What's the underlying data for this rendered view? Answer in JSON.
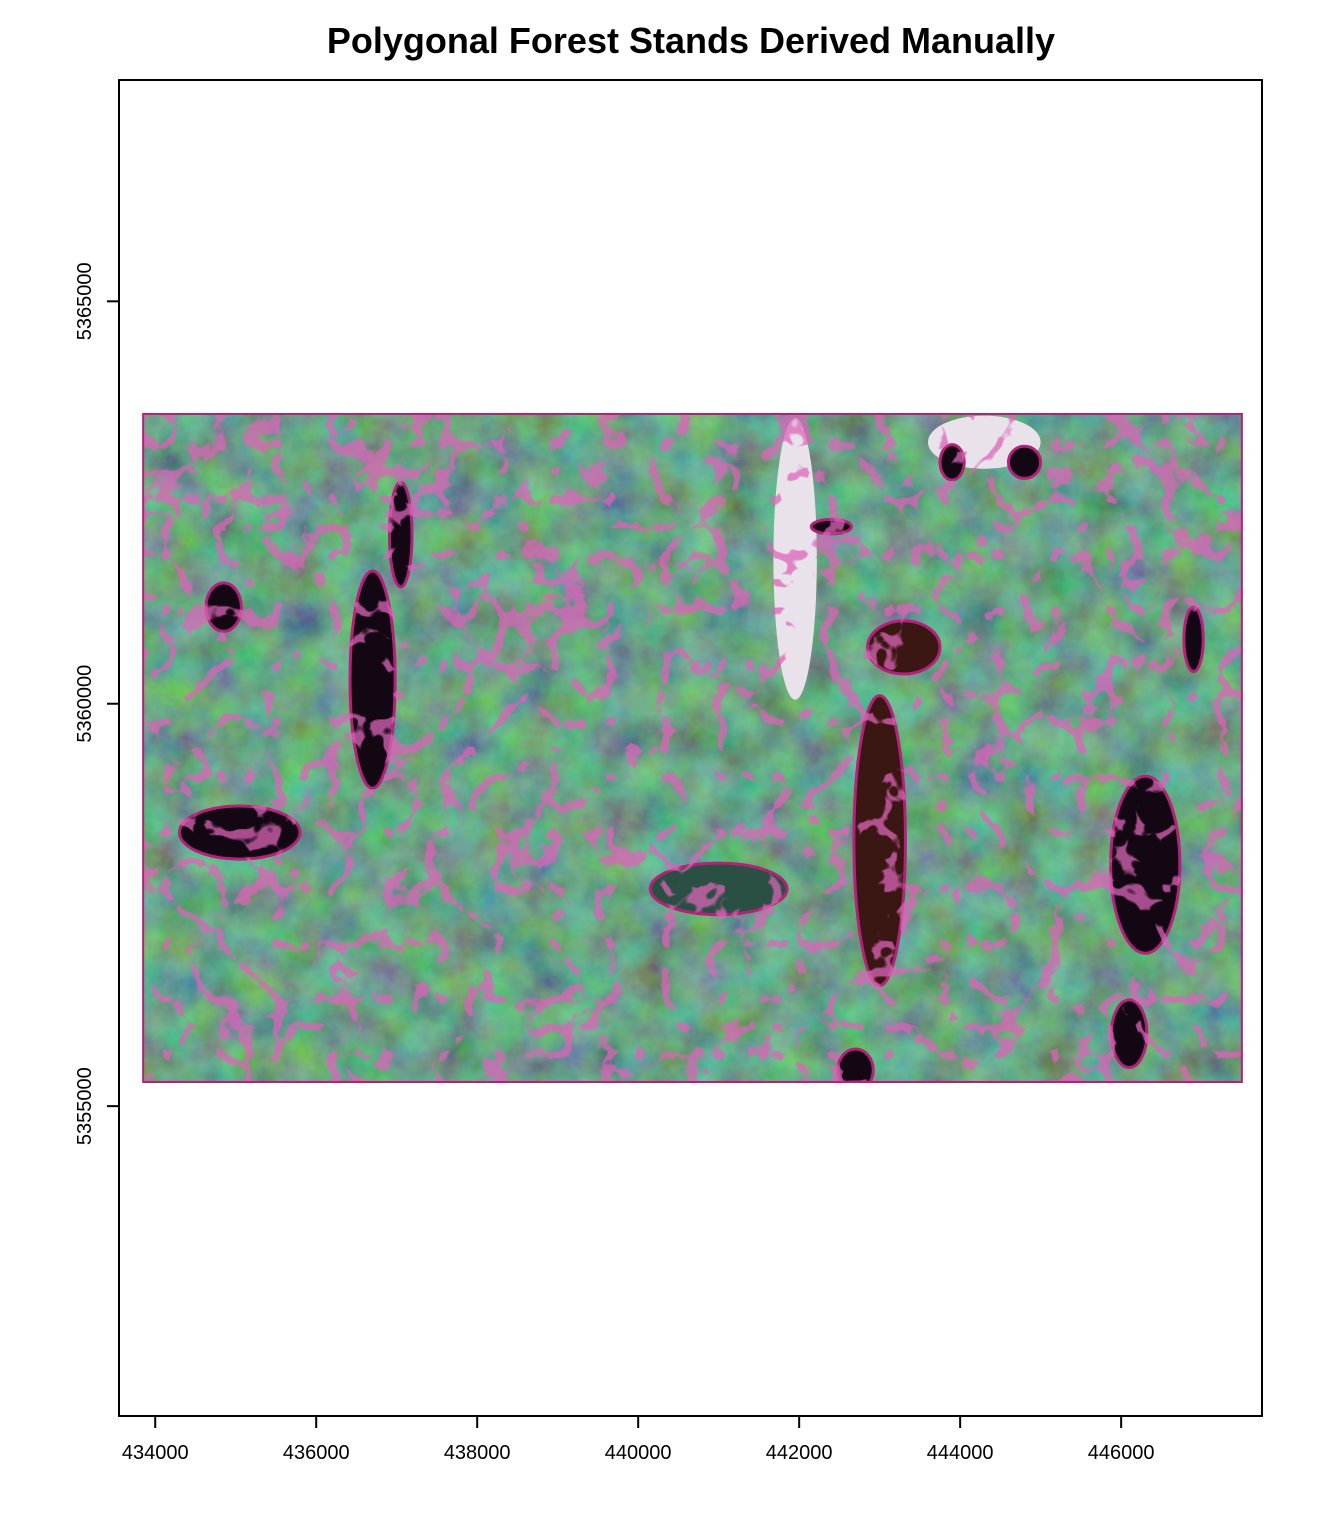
{
  "chart_data": {
    "type": "map",
    "title": "Polygonal Forest Stands Derived Manually",
    "xlabel": "",
    "ylabel": "",
    "x_ticks": [
      434000,
      436000,
      438000,
      440000,
      442000,
      444000,
      446000
    ],
    "y_ticks": [
      5355000,
      5360000,
      5365000
    ],
    "xlim": [
      433550,
      447750
    ],
    "ylim": [
      5351150,
      5367750
    ],
    "raster_extent": {
      "x": [
        433850,
        447500
      ],
      "y": [
        5355300,
        5363600
      ]
    },
    "layers": [
      {
        "kind": "false-color satellite raster",
        "dominant_color": "#2f6a45"
      },
      {
        "kind": "forest stand polygon outlines",
        "stroke_color": "#b5207a"
      }
    ],
    "water_bodies": [
      {
        "name": "",
        "cx": 436700,
        "cy": 5360300,
        "rx": 280,
        "ry": 1350,
        "fill": "#120712"
      },
      {
        "name": "",
        "cx": 435050,
        "cy": 5358400,
        "rx": 750,
        "ry": 330,
        "fill": "#120712"
      },
      {
        "name": "",
        "cx": 434850,
        "cy": 5361200,
        "rx": 220,
        "ry": 300,
        "fill": "#120712"
      },
      {
        "name": "",
        "cx": 437050,
        "cy": 5362100,
        "rx": 140,
        "ry": 650,
        "fill": "#120712"
      },
      {
        "name": "",
        "cx": 443000,
        "cy": 5358300,
        "rx": 320,
        "ry": 1800,
        "fill": "#3a1712"
      },
      {
        "name": "",
        "cx": 443300,
        "cy": 5360700,
        "rx": 450,
        "ry": 330,
        "fill": "#3a1712"
      },
      {
        "name": "",
        "cx": 446300,
        "cy": 5358000,
        "rx": 430,
        "ry": 1100,
        "fill": "#120712"
      },
      {
        "name": "",
        "cx": 446100,
        "cy": 5355900,
        "rx": 220,
        "ry": 420,
        "fill": "#120712"
      },
      {
        "name": "",
        "cx": 446900,
        "cy": 5360800,
        "rx": 120,
        "ry": 400,
        "fill": "#120712"
      },
      {
        "name": "",
        "cx": 441000,
        "cy": 5357700,
        "rx": 850,
        "ry": 320,
        "fill": "#2a4f43"
      },
      {
        "name": "",
        "cx": 443900,
        "cy": 5363000,
        "rx": 150,
        "ry": 220,
        "fill": "#120712"
      },
      {
        "name": "",
        "cx": 444800,
        "cy": 5363000,
        "rx": 200,
        "ry": 200,
        "fill": "#120712"
      },
      {
        "name": "",
        "cx": 442400,
        "cy": 5362200,
        "rx": 250,
        "ry": 90,
        "fill": "#120712"
      },
      {
        "name": "",
        "cx": 442700,
        "cy": 5355450,
        "rx": 220,
        "ry": 260,
        "fill": "#120712"
      }
    ],
    "clearings": [
      {
        "cx": 441950,
        "cy": 5361800,
        "rx": 270,
        "ry": 1750
      },
      {
        "cx": 444300,
        "cy": 5363250,
        "rx": 700,
        "ry": 330
      }
    ],
    "grid": false,
    "legend": "none"
  }
}
